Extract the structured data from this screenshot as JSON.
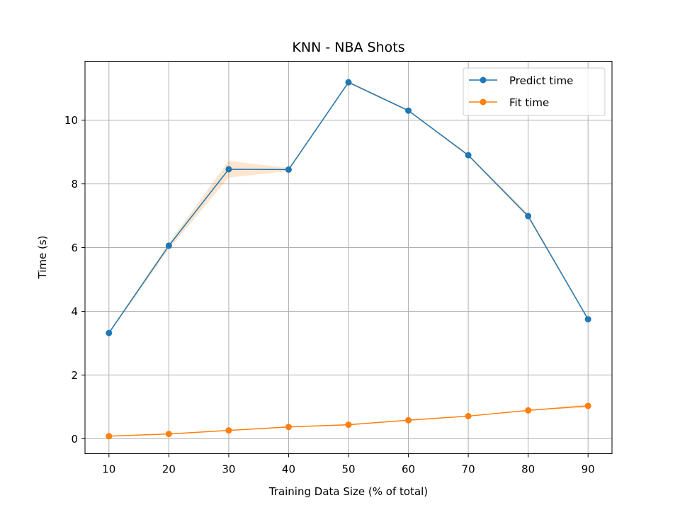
{
  "chart_data": {
    "type": "line",
    "title": "KNN - NBA Shots",
    "xlabel": "Training Data Size (% of total)",
    "ylabel": "Time (s)",
    "x": [
      10,
      20,
      30,
      40,
      50,
      60,
      70,
      80,
      90
    ],
    "xlim": [
      6,
      94
    ],
    "ylim": [
      -0.47,
      11.85
    ],
    "xticks": [
      10,
      20,
      30,
      40,
      50,
      60,
      70,
      80,
      90
    ],
    "yticks": [
      0,
      2,
      4,
      6,
      8,
      10
    ],
    "grid": true,
    "legend_position": "top-right",
    "series": [
      {
        "name": "Predict time",
        "color": "#1f77b4",
        "values": [
          3.32,
          6.06,
          8.46,
          8.45,
          11.19,
          10.3,
          8.9,
          6.99,
          3.75
        ],
        "band": [
          [
            3.3,
            3.36
          ],
          [
            5.95,
            6.15
          ],
          [
            8.2,
            8.72
          ],
          [
            8.4,
            8.5
          ],
          [
            11.15,
            11.23
          ],
          [
            10.27,
            10.33
          ],
          [
            8.86,
            8.94
          ],
          [
            6.92,
            7.06
          ],
          [
            3.72,
            3.8
          ]
        ]
      },
      {
        "name": "Fit time",
        "color": "#ff7f0e",
        "values": [
          0.08,
          0.15,
          0.26,
          0.37,
          0.44,
          0.58,
          0.71,
          0.89,
          1.03
        ],
        "band": [
          [
            0.07,
            0.09
          ],
          [
            0.14,
            0.16
          ],
          [
            0.25,
            0.27
          ],
          [
            0.36,
            0.38
          ],
          [
            0.43,
            0.45
          ],
          [
            0.57,
            0.59
          ],
          [
            0.7,
            0.72
          ],
          [
            0.88,
            0.9
          ],
          [
            0.98,
            1.08
          ]
        ]
      }
    ]
  }
}
